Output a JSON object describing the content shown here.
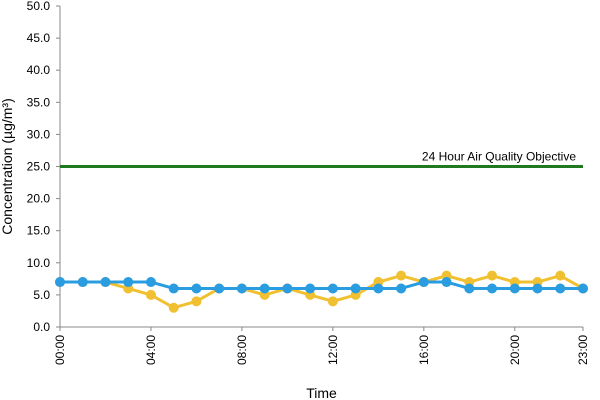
{
  "chart_data": {
    "type": "line",
    "title": "",
    "xlabel": "Time",
    "ylabel": "Concentration (µg/m³)",
    "ylim": [
      0,
      50
    ],
    "yticks": [
      "0.0",
      "5.0",
      "10.0",
      "15.0",
      "20.0",
      "25.0",
      "30.0",
      "35.0",
      "40.0",
      "45.0",
      "50.0"
    ],
    "xticks": [
      "00:00",
      "04:00",
      "08:00",
      "12:00",
      "16:00",
      "20:00",
      "23:00"
    ],
    "xtick_hours": [
      0,
      4,
      8,
      12,
      16,
      20,
      23
    ],
    "x": [
      "00:00",
      "01:00",
      "02:00",
      "03:00",
      "04:00",
      "05:00",
      "06:00",
      "07:00",
      "08:00",
      "09:00",
      "10:00",
      "11:00",
      "12:00",
      "13:00",
      "14:00",
      "15:00",
      "16:00",
      "17:00",
      "18:00",
      "19:00",
      "20:00",
      "21:00",
      "22:00",
      "23:00"
    ],
    "grid": false,
    "series": [
      {
        "color": "#f0c030",
        "values": [
          7,
          7,
          7,
          6,
          5,
          3,
          4,
          6,
          6,
          5,
          6,
          5,
          4,
          5,
          7,
          8,
          7,
          8,
          7,
          8,
          7,
          7,
          8,
          6
        ]
      },
      {
        "color": "#2a9ce0",
        "values": [
          7,
          7,
          7,
          7,
          7,
          6,
          6,
          6,
          6,
          6,
          6,
          6,
          6,
          6,
          6,
          6,
          7,
          7,
          6,
          6,
          6,
          6,
          6,
          6
        ]
      }
    ],
    "reference_line": {
      "label": "24 Hour Air Quality Objective",
      "value": 25,
      "color": "#1f7a1f"
    }
  }
}
